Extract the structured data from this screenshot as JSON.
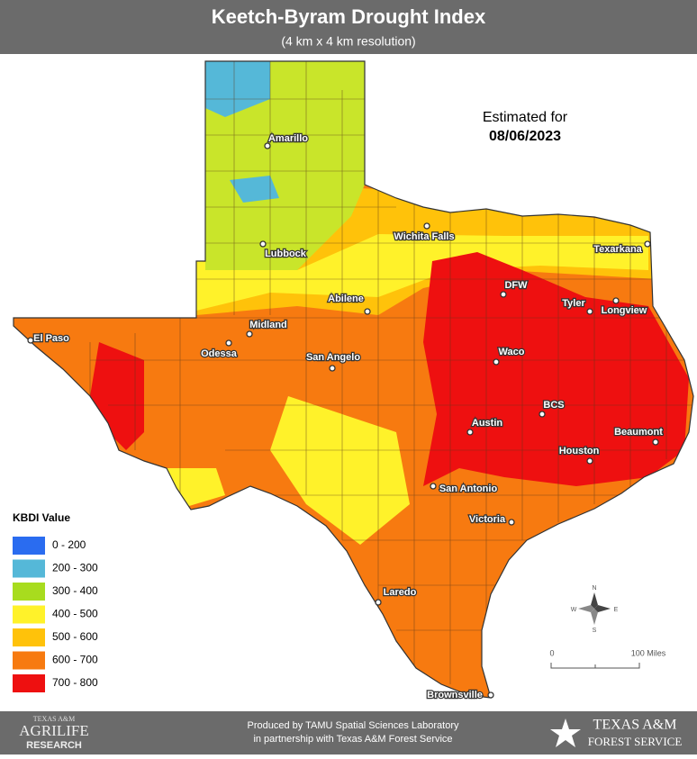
{
  "header": {
    "title": "Keetch-Byram Drought Index",
    "subtitle": "(4 km x 4 km resolution)"
  },
  "estimate": {
    "label": "Estimated for",
    "date": "08/06/2023"
  },
  "cities": [
    "Amarillo",
    "Lubbock",
    "Wichita Falls",
    "Texarkana",
    "DFW",
    "Tyler",
    "Longview",
    "Abilene",
    "Midland",
    "Odessa",
    "El Paso",
    "San Angelo",
    "Waco",
    "BCS",
    "Austin",
    "Beaumont",
    "Houston",
    "San Antonio",
    "Victoria",
    "Laredo",
    "Brownsville"
  ],
  "legend": {
    "title": "KBDI Value",
    "items": [
      {
        "label": "0 - 200",
        "color": "#2a6cf0"
      },
      {
        "label": "200 - 300",
        "color": "#55b8d8"
      },
      {
        "label": "300 - 400",
        "color": "#a8dc1e"
      },
      {
        "label": "400 - 500",
        "color": "#fff22a"
      },
      {
        "label": "500 - 600",
        "color": "#ffc20a"
      },
      {
        "label": "600 - 700",
        "color": "#f77a10"
      },
      {
        "label": "700 - 800",
        "color": "#ee1010"
      }
    ]
  },
  "scale": {
    "start": "0",
    "end": "100 Miles"
  },
  "compass": {
    "n": "N",
    "s": "S",
    "e": "E",
    "w": "W"
  },
  "footer": {
    "line1": "Produced by TAMU Spatial Sciences Laboratory",
    "line2": "in partnership with Texas A&M Forest Service",
    "left_logo": [
      "TEXAS A&M",
      "AGRILIFE",
      "RESEARCH"
    ],
    "right_logo": [
      "TEXAS A&M",
      "FOREST SERVICE"
    ]
  }
}
